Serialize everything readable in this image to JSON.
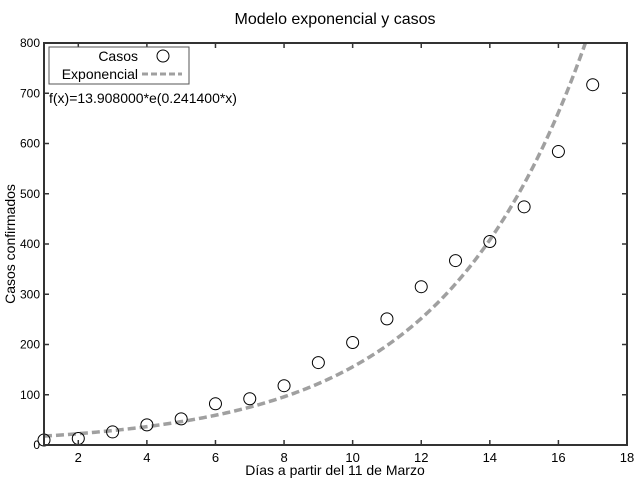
{
  "chart_data": {
    "type": "scatter",
    "title": "Modelo exponencial y casos",
    "xlabel": "Días a partir del 11 de Marzo",
    "ylabel": "Casos confirmados",
    "xlim": [
      1,
      18
    ],
    "ylim": [
      0,
      800
    ],
    "xticks": [
      2,
      4,
      6,
      8,
      10,
      12,
      14,
      16,
      18
    ],
    "yticks": [
      0,
      100,
      200,
      300,
      400,
      500,
      600,
      700,
      800
    ],
    "grid": false,
    "legend_position": "top-left",
    "annotation": "f(x)=13.908000*e(0.241400*x)",
    "series": [
      {
        "name": "Casos",
        "kind": "markers",
        "marker": "open-circle",
        "color": "#000000",
        "x": [
          1,
          2,
          3,
          4,
          5,
          6,
          7,
          8,
          9,
          10,
          11,
          12,
          13,
          14,
          15,
          16,
          17
        ],
        "y": [
          10,
          13,
          26,
          40,
          52,
          82,
          92,
          118,
          164,
          204,
          251,
          315,
          367,
          405,
          474,
          584,
          717
        ]
      },
      {
        "name": "Exponencial",
        "kind": "dashed-line",
        "color": "#a0a0a0",
        "model": {
          "a": 13.908,
          "b": 0.2414
        }
      }
    ]
  }
}
